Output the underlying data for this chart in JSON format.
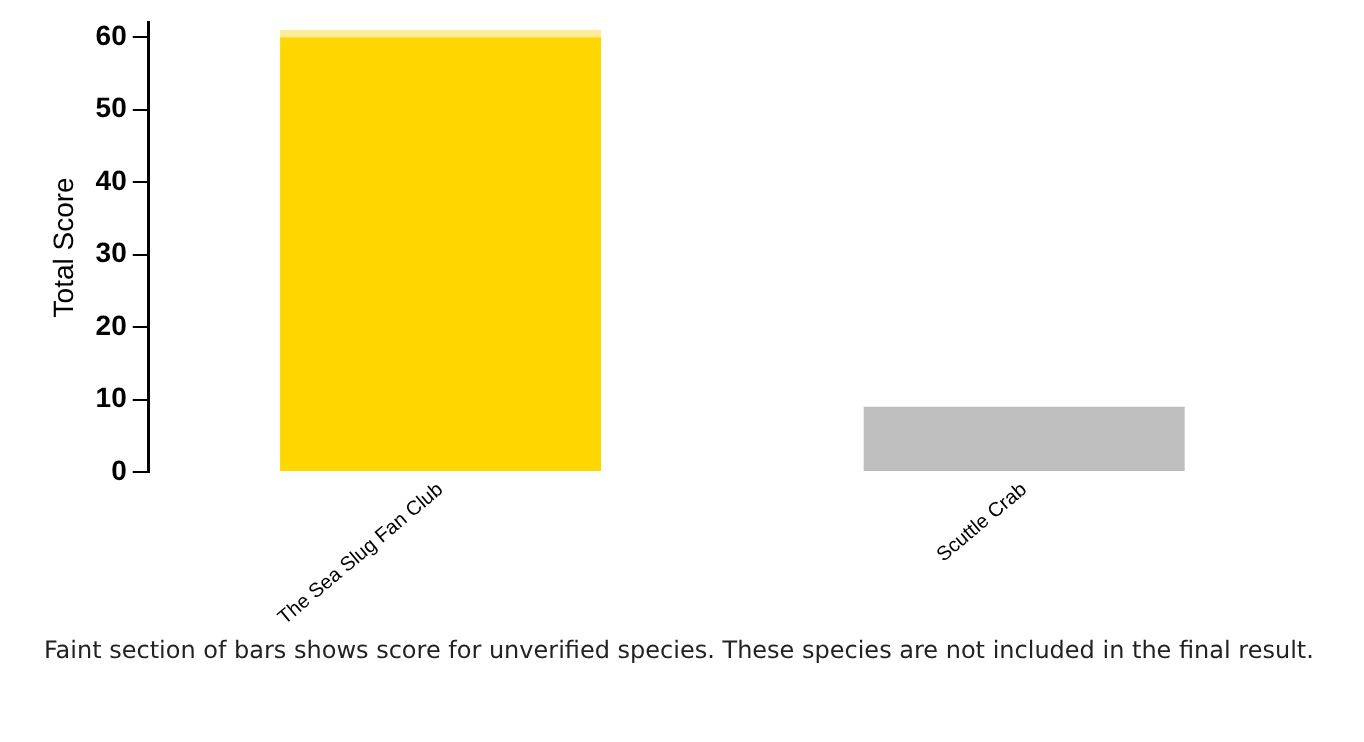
{
  "chart_data": {
    "type": "bar",
    "ylabel": "Total Score",
    "categories": [
      "The Sea Slug Fan Club",
      "Scuttle Crab"
    ],
    "stacked": true,
    "series": [
      {
        "colors": [
          "#ffd700",
          "#bebebe"
        ],
        "values": [
          60,
          9
        ]
      },
      {
        "colors": [
          "#ffeb99",
          "#e8e8e8"
        ],
        "values": [
          1,
          0
        ]
      }
    ],
    "ylim": [
      0,
      62
    ],
    "yticks": [
      0,
      10,
      20,
      30,
      40,
      50,
      60
    ],
    "grid": false,
    "legend": false,
    "annotations": [
      "Faint section of bars shows score for unverified species.  These species are not included in the final result."
    ]
  }
}
